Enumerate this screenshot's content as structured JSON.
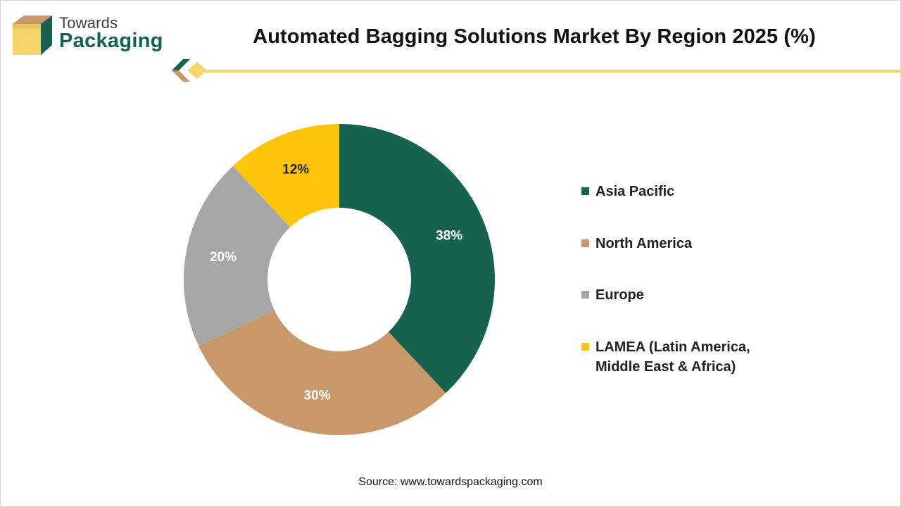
{
  "brand": {
    "line1": "Towards",
    "line2": "Packaging"
  },
  "colors": {
    "accent_yellow": "#f5d46a",
    "brand_green": "#17624f",
    "brand_tan": "#c9986a"
  },
  "chart_data": {
    "type": "pie",
    "title": "Automated Bagging Solutions Market By Region 2025 (%)",
    "donut": true,
    "start_angle_deg": 0,
    "direction": "clockwise",
    "legend_position": "right",
    "categories": [
      "Asia Pacific",
      "North America",
      "Europe",
      "LAMEA (Latin America,\nMiddle East & Africa)"
    ],
    "values": [
      38,
      30,
      20,
      12
    ],
    "data_labels": [
      "38%",
      "30%",
      "20%",
      "12%"
    ],
    "colors": [
      "#17624f",
      "#c9986a",
      "#a6a6a6",
      "#fcc40a"
    ],
    "label_colors": [
      "#ffffff",
      "#ffffff",
      "#ffffff",
      "#222222"
    ]
  },
  "source": "Source: www.towardspackaging.com"
}
